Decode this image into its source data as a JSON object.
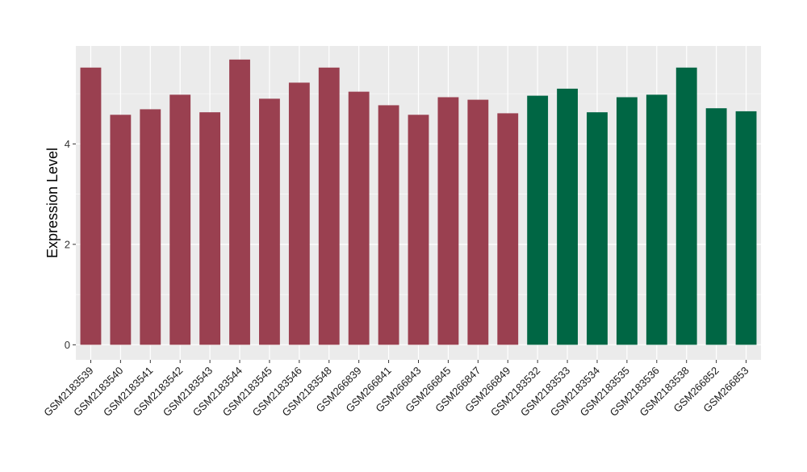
{
  "chart_data": {
    "type": "bar",
    "ylabel": "Expression Level",
    "xlabel": "",
    "ylim": [
      -0.3,
      5.95
    ],
    "yticks": [
      0,
      2,
      4
    ],
    "grid": true,
    "categories": [
      "GSM2183539",
      "GSM2183540",
      "GSM2183541",
      "GSM2183542",
      "GSM2183543",
      "GSM2183544",
      "GSM2183545",
      "GSM2183546",
      "GSM2183548",
      "GSM266839",
      "GSM266841",
      "GSM266843",
      "GSM266845",
      "GSM266847",
      "GSM266849",
      "GSM2183532",
      "GSM2183533",
      "GSM2183534",
      "GSM2183535",
      "GSM2183536",
      "GSM2183538",
      "GSM266852",
      "GSM266853"
    ],
    "values": [
      5.52,
      4.58,
      4.69,
      4.98,
      4.63,
      5.68,
      4.9,
      5.22,
      5.52,
      5.04,
      4.77,
      4.58,
      4.93,
      4.88,
      4.61,
      4.96,
      5.1,
      4.63,
      4.93,
      4.98,
      5.52,
      4.71,
      4.65
    ],
    "groups": [
      0,
      0,
      0,
      0,
      0,
      0,
      0,
      0,
      0,
      0,
      0,
      0,
      0,
      0,
      0,
      1,
      1,
      1,
      1,
      1,
      1,
      1,
      1
    ],
    "colors": [
      "#9A4050",
      "#006644"
    ],
    "panel_color": "#EBEBEB"
  }
}
